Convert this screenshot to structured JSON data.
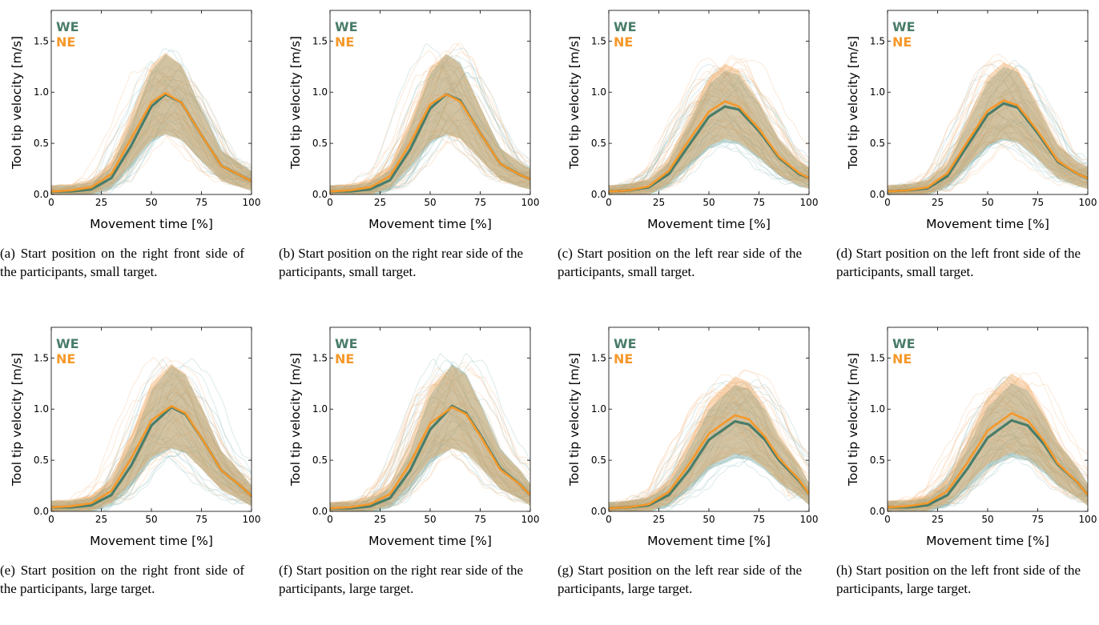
{
  "colors": {
    "we": "#4a7d69",
    "ne": "#f5982a",
    "we_band": "#5d9c95",
    "ne_band": "#f0a050",
    "trace_we": "#9cc4c2",
    "trace_ne": "#f6c08e"
  },
  "legend": {
    "we": "WE",
    "ne": "NE"
  },
  "axes": {
    "xlabel": "Movement time [%]",
    "ylabel": "Tool tip velocity [m/s]",
    "xticks": [
      "0",
      "25",
      "50",
      "75",
      "100"
    ],
    "yticks": [
      "0.0",
      "0.5",
      "1.0",
      "1.5"
    ]
  },
  "captions": [
    "(a) Start position on the right front side of the participants, small target.",
    "(b) Start position on the right rear side of the participants, small target.",
    "(c) Start position on the left rear side of the participants, small target.",
    "(d) Start position on the left front side of the participants, small target.",
    "(e) Start position on the right front side of the participants, large target.",
    "(f) Start position on the right rear side of the participants, large target.",
    "(g) Start position on the left rear side of the participants, large target.",
    "(h) Start position on the left front side of the participants, large target."
  ],
  "chart_data": [
    {
      "type": "line",
      "xlabel": "Movement time [%]",
      "ylabel": "Tool tip velocity [m/s]",
      "xlim": [
        0,
        100
      ],
      "ylim": [
        0,
        1.8
      ],
      "x": [
        0,
        10,
        20,
        30,
        40,
        50,
        57,
        65,
        75,
        85,
        95,
        100
      ],
      "series": [
        {
          "name": "WE",
          "values": [
            0.03,
            0.03,
            0.05,
            0.16,
            0.48,
            0.86,
            0.98,
            0.9,
            0.58,
            0.28,
            0.18,
            0.13
          ]
        },
        {
          "name": "NE",
          "values": [
            0.03,
            0.04,
            0.07,
            0.2,
            0.55,
            0.9,
            0.99,
            0.9,
            0.58,
            0.28,
            0.18,
            0.13
          ]
        }
      ]
    },
    {
      "type": "line",
      "xlabel": "Movement time [%]",
      "ylabel": "Tool tip velocity [m/s]",
      "xlim": [
        0,
        100
      ],
      "ylim": [
        0,
        1.8
      ],
      "x": [
        0,
        10,
        20,
        30,
        40,
        50,
        58,
        65,
        75,
        85,
        95,
        100
      ],
      "series": [
        {
          "name": "WE",
          "values": [
            0.03,
            0.03,
            0.05,
            0.14,
            0.44,
            0.84,
            0.98,
            0.92,
            0.6,
            0.3,
            0.19,
            0.15
          ]
        },
        {
          "name": "NE",
          "values": [
            0.03,
            0.04,
            0.07,
            0.18,
            0.5,
            0.88,
            0.98,
            0.91,
            0.6,
            0.3,
            0.19,
            0.15
          ]
        }
      ]
    },
    {
      "type": "line",
      "xlabel": "Movement time [%]",
      "ylabel": "Tool tip velocity [m/s]",
      "xlim": [
        0,
        100
      ],
      "ylim": [
        0,
        1.8
      ],
      "x": [
        0,
        10,
        20,
        30,
        40,
        50,
        58,
        65,
        75,
        85,
        95,
        100
      ],
      "series": [
        {
          "name": "WE",
          "values": [
            0.03,
            0.04,
            0.07,
            0.2,
            0.48,
            0.76,
            0.86,
            0.83,
            0.62,
            0.36,
            0.2,
            0.16
          ]
        },
        {
          "name": "NE",
          "values": [
            0.03,
            0.04,
            0.08,
            0.23,
            0.53,
            0.81,
            0.91,
            0.86,
            0.64,
            0.37,
            0.21,
            0.16
          ]
        }
      ]
    },
    {
      "type": "line",
      "xlabel": "Movement time [%]",
      "ylabel": "Tool tip velocity [m/s]",
      "xlim": [
        0,
        100
      ],
      "ylim": [
        0,
        1.8
      ],
      "x": [
        0,
        10,
        20,
        30,
        40,
        50,
        58,
        65,
        75,
        85,
        95,
        100
      ],
      "series": [
        {
          "name": "WE",
          "values": [
            0.03,
            0.04,
            0.06,
            0.18,
            0.48,
            0.78,
            0.89,
            0.85,
            0.6,
            0.32,
            0.2,
            0.16
          ]
        },
        {
          "name": "NE",
          "values": [
            0.03,
            0.04,
            0.07,
            0.21,
            0.52,
            0.82,
            0.92,
            0.87,
            0.62,
            0.33,
            0.2,
            0.16
          ]
        }
      ]
    },
    {
      "type": "line",
      "xlabel": "Movement time [%]",
      "ylabel": "Tool tip velocity [m/s]",
      "xlim": [
        0,
        100
      ],
      "ylim": [
        0,
        1.8
      ],
      "x": [
        0,
        10,
        20,
        30,
        40,
        50,
        60,
        67,
        75,
        85,
        95,
        100
      ],
      "series": [
        {
          "name": "WE",
          "values": [
            0.04,
            0.04,
            0.06,
            0.16,
            0.45,
            0.84,
            1.02,
            0.95,
            0.72,
            0.4,
            0.24,
            0.15
          ]
        },
        {
          "name": "NE",
          "values": [
            0.04,
            0.05,
            0.08,
            0.2,
            0.52,
            0.89,
            1.03,
            0.96,
            0.72,
            0.4,
            0.24,
            0.15
          ]
        }
      ]
    },
    {
      "type": "line",
      "xlabel": "Movement time [%]",
      "ylabel": "Tool tip velocity [m/s]",
      "xlim": [
        0,
        100
      ],
      "ylim": [
        0,
        1.8
      ],
      "x": [
        0,
        10,
        20,
        30,
        40,
        50,
        61,
        68,
        75,
        85,
        95,
        100
      ],
      "series": [
        {
          "name": "WE",
          "values": [
            0.03,
            0.03,
            0.05,
            0.13,
            0.4,
            0.8,
            1.03,
            0.96,
            0.75,
            0.42,
            0.26,
            0.16
          ]
        },
        {
          "name": "NE",
          "values": [
            0.03,
            0.04,
            0.07,
            0.17,
            0.47,
            0.86,
            1.02,
            0.95,
            0.74,
            0.41,
            0.26,
            0.16
          ]
        }
      ]
    },
    {
      "type": "line",
      "xlabel": "Movement time [%]",
      "ylabel": "Tool tip velocity [m/s]",
      "xlim": [
        0,
        100
      ],
      "ylim": [
        0,
        1.8
      ],
      "x": [
        0,
        10,
        20,
        30,
        40,
        50,
        63,
        70,
        78,
        85,
        95,
        100
      ],
      "series": [
        {
          "name": "WE",
          "values": [
            0.03,
            0.04,
            0.06,
            0.16,
            0.4,
            0.7,
            0.88,
            0.85,
            0.7,
            0.5,
            0.3,
            0.17
          ]
        },
        {
          "name": "NE",
          "values": [
            0.03,
            0.04,
            0.07,
            0.19,
            0.46,
            0.76,
            0.94,
            0.9,
            0.73,
            0.52,
            0.31,
            0.17
          ]
        }
      ]
    },
    {
      "type": "line",
      "xlabel": "Movement time [%]",
      "ylabel": "Tool tip velocity [m/s]",
      "xlim": [
        0,
        100
      ],
      "ylim": [
        0,
        1.8
      ],
      "x": [
        0,
        10,
        20,
        30,
        40,
        50,
        62,
        70,
        78,
        85,
        95,
        100
      ],
      "series": [
        {
          "name": "WE",
          "values": [
            0.04,
            0.04,
            0.06,
            0.16,
            0.42,
            0.72,
            0.89,
            0.84,
            0.66,
            0.46,
            0.28,
            0.16
          ]
        },
        {
          "name": "NE",
          "values": [
            0.04,
            0.05,
            0.08,
            0.2,
            0.48,
            0.79,
            0.96,
            0.89,
            0.69,
            0.47,
            0.28,
            0.16
          ]
        }
      ]
    }
  ]
}
